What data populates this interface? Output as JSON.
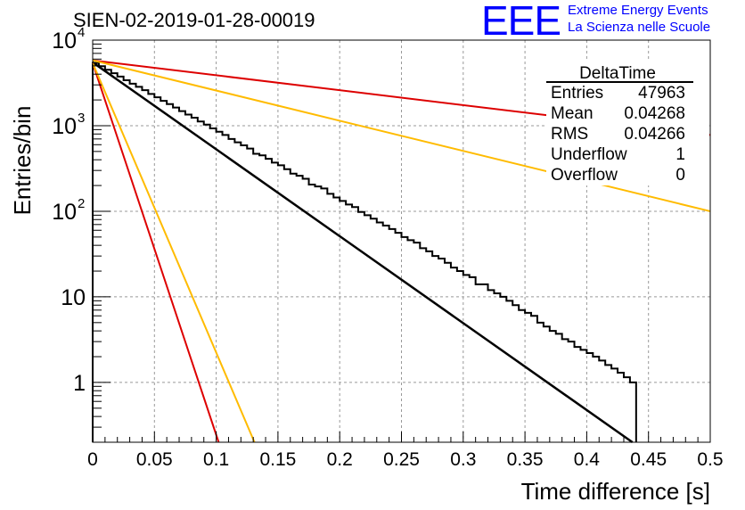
{
  "title": "SIEN-02-2019-01-28-00019",
  "logo": {
    "mark": "EEE",
    "line1": "Extreme Energy Events",
    "line2": "La Scienza nelle Scuole",
    "color": "#0000ff"
  },
  "stats_box": {
    "header": "DeltaTime",
    "rows": [
      {
        "label": "Entries",
        "value": "47963"
      },
      {
        "label": "Mean",
        "value": "0.04268"
      },
      {
        "label": "RMS",
        "value": "0.04266"
      },
      {
        "label": "Underflow",
        "value": "1"
      },
      {
        "label": "Overflow",
        "value": "0"
      }
    ]
  },
  "chart_data": {
    "type": "line",
    "xlabel": "Time difference [s]",
    "ylabel": "Entries/bin",
    "xlim": [
      0,
      0.5
    ],
    "ylim": [
      0.2,
      10000
    ],
    "yscale": "log",
    "grid": true,
    "x_ticks": [
      "0",
      "0.05",
      "0.1",
      "0.15",
      "0.2",
      "0.25",
      "0.3",
      "0.35",
      "0.4",
      "0.45",
      "0.5"
    ],
    "y_ticks": [
      {
        "value": 1,
        "label": "1"
      },
      {
        "value": 10,
        "label": "10"
      },
      {
        "value": 100,
        "label": "10",
        "exp": "2"
      },
      {
        "value": 1000,
        "label": "10",
        "exp": "3"
      },
      {
        "value": 10000,
        "label": "10",
        "exp": "4"
      }
    ],
    "histogram": {
      "bin_width": 0.005,
      "color": "#000000",
      "bins": [
        [
          0.0,
          5400
        ],
        [
          0.005,
          4950
        ],
        [
          0.01,
          4500
        ],
        [
          0.015,
          4100
        ],
        [
          0.02,
          3750
        ],
        [
          0.025,
          3400
        ],
        [
          0.03,
          3100
        ],
        [
          0.035,
          2850
        ],
        [
          0.04,
          2600
        ],
        [
          0.045,
          2350
        ],
        [
          0.05,
          2150
        ],
        [
          0.055,
          1950
        ],
        [
          0.06,
          1790
        ],
        [
          0.065,
          1630
        ],
        [
          0.07,
          1480
        ],
        [
          0.075,
          1350
        ],
        [
          0.08,
          1240
        ],
        [
          0.085,
          1120
        ],
        [
          0.09,
          1030
        ],
        [
          0.095,
          930
        ],
        [
          0.1,
          850
        ],
        [
          0.105,
          780
        ],
        [
          0.11,
          700
        ],
        [
          0.115,
          640
        ],
        [
          0.12,
          590
        ],
        [
          0.125,
          540
        ],
        [
          0.13,
          470
        ],
        [
          0.135,
          450
        ],
        [
          0.14,
          410
        ],
        [
          0.145,
          370
        ],
        [
          0.15,
          345
        ],
        [
          0.155,
          310
        ],
        [
          0.16,
          275
        ],
        [
          0.165,
          260
        ],
        [
          0.17,
          240
        ],
        [
          0.175,
          205
        ],
        [
          0.18,
          195
        ],
        [
          0.185,
          185
        ],
        [
          0.19,
          160
        ],
        [
          0.195,
          145
        ],
        [
          0.2,
          132
        ],
        [
          0.205,
          120
        ],
        [
          0.21,
          112
        ],
        [
          0.215,
          98
        ],
        [
          0.22,
          90
        ],
        [
          0.225,
          82
        ],
        [
          0.23,
          74
        ],
        [
          0.235,
          68
        ],
        [
          0.24,
          62
        ],
        [
          0.245,
          56
        ],
        [
          0.25,
          50
        ],
        [
          0.255,
          46
        ],
        [
          0.26,
          43
        ],
        [
          0.265,
          37
        ],
        [
          0.27,
          34
        ],
        [
          0.275,
          30
        ],
        [
          0.28,
          28
        ],
        [
          0.285,
          25
        ],
        [
          0.29,
          22
        ],
        [
          0.295,
          20
        ],
        [
          0.3,
          18
        ],
        [
          0.305,
          17
        ],
        [
          0.31,
          14
        ],
        [
          0.315,
          14
        ],
        [
          0.32,
          12
        ],
        [
          0.325,
          11
        ],
        [
          0.33,
          10
        ],
        [
          0.335,
          9
        ],
        [
          0.34,
          8
        ],
        [
          0.345,
          7
        ],
        [
          0.35,
          6.5
        ],
        [
          0.355,
          6
        ],
        [
          0.36,
          5
        ],
        [
          0.365,
          4.5
        ],
        [
          0.37,
          4
        ],
        [
          0.375,
          3.7
        ],
        [
          0.38,
          3.2
        ],
        [
          0.385,
          3
        ],
        [
          0.39,
          2.6
        ],
        [
          0.395,
          2.4
        ],
        [
          0.4,
          2.2
        ],
        [
          0.405,
          2
        ],
        [
          0.41,
          1.8
        ],
        [
          0.415,
          1.6
        ],
        [
          0.42,
          1.45
        ],
        [
          0.425,
          1.3
        ],
        [
          0.43,
          1.15
        ],
        [
          0.435,
          1
        ]
      ]
    },
    "fit_lines": [
      {
        "color": "#000000",
        "points": [
          [
            0,
            5500
          ],
          [
            0.437,
            0.2
          ]
        ]
      },
      {
        "color": "#dd0000",
        "points": [
          [
            0,
            5800
          ],
          [
            0.5,
            780
          ]
        ]
      },
      {
        "color": "#ffbb00",
        "points": [
          [
            0,
            5800
          ],
          [
            0.5,
            100
          ]
        ]
      },
      {
        "color": "#dd0000",
        "points": [
          [
            0,
            5400
          ],
          [
            0.102,
            0.2
          ]
        ]
      },
      {
        "color": "#ffbb00",
        "points": [
          [
            0,
            5400
          ],
          [
            0.131,
            0.2
          ]
        ]
      }
    ]
  }
}
